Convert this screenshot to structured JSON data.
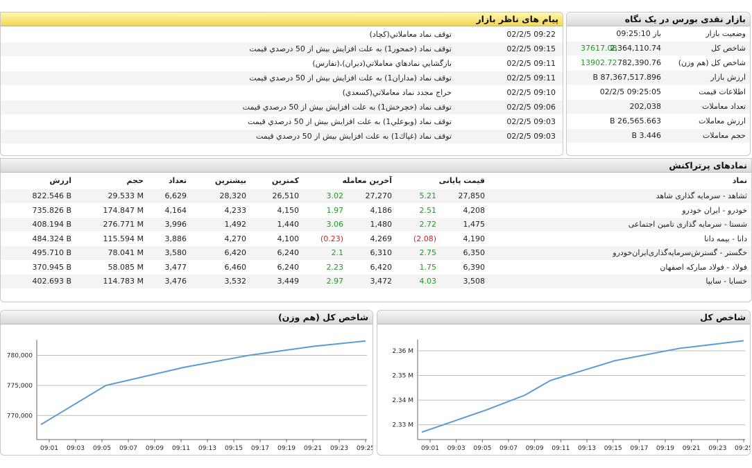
{
  "glance": {
    "title": "بازار نقدی بورس در یک نگاه",
    "rows": [
      {
        "label": "وضعیت بازار",
        "value": "باز 09:25:10",
        "change": ""
      },
      {
        "label": "شاخص کل",
        "value": "2,364,110.74",
        "change": "37617.08"
      },
      {
        "label": "شاخص کل (هم وزن)",
        "value": "782,390.76",
        "change": "13902.72"
      },
      {
        "label": "ارزش بازار",
        "value": "87,367,517.896 B",
        "change": ""
      },
      {
        "label": "اطلاعات قیمت",
        "value": "09:25:05 02/2/5",
        "change": ""
      },
      {
        "label": "تعداد معاملات",
        "value": "202,038",
        "change": ""
      },
      {
        "label": "ارزش معاملات",
        "value": "26,565.663 B",
        "change": ""
      },
      {
        "label": "حجم معاملات",
        "value": "3.446 B",
        "change": ""
      }
    ]
  },
  "messages": {
    "title": "پیام های ناظر بازار",
    "rows": [
      {
        "time": "02/2/5 09:22",
        "text": "توقف نماد معاملاتي(كچاد)"
      },
      {
        "time": "02/2/5 09:15",
        "text": "توقف نماد (خمحور1) به علت افزايش بيش از 50 درصدي قيمت"
      },
      {
        "time": "02/2/5 09:11",
        "text": "بازگشايي نمادهاي معاملاتي(ديران)،(تفارس)"
      },
      {
        "time": "02/2/5 09:11",
        "text": "توقف نماد (مداران1) به علت افزايش بيش از 50 درصدي قيمت"
      },
      {
        "time": "02/2/5 09:10",
        "text": "حراج مجدد نماد معاملاتي(كسعدي)"
      },
      {
        "time": "02/2/5 09:06",
        "text": "توقف نماد (خچرخش1) به علت افزايش بيش از 50 درصدي قيمت"
      },
      {
        "time": "02/2/5 09:03",
        "text": "توقف نماد (وبوعلي1) به علت افزايش بيش از 50 درصدي قيمت"
      },
      {
        "time": "02/2/5 09:03",
        "text": "توقف نماد (غپاك1) به علت افزايش بيش از 50 درصدي قيمت"
      }
    ]
  },
  "popular": {
    "title": "نمادهای پرتراکنش",
    "headers": {
      "symbol": "نماد",
      "close": "قیمت پایانی",
      "last": "آخرین معامله",
      "min": "کمترین",
      "max": "بیشترین",
      "count": "تعداد",
      "volume": "حجم",
      "value": "ارزش"
    },
    "rows": [
      {
        "symbol": "ثشاهد - سرمایه گذاری شاهد",
        "close": "27,850",
        "close_chg": "5.21",
        "last": "27,270",
        "last_chg": "3.02",
        "min": "26,510",
        "max": "28,320",
        "count": "6,629",
        "volume": "29.533 M",
        "value": "822.546 B"
      },
      {
        "symbol": "خودرو - ایران خودرو",
        "close": "4,208",
        "close_chg": "2.51",
        "last": "4,186",
        "last_chg": "1.97",
        "min": "4,150",
        "max": "4,233",
        "count": "4,164",
        "volume": "174.847 M",
        "value": "735.826 B"
      },
      {
        "symbol": "شستا - سرمایه گذاری تامین اجتماعی",
        "close": "1,475",
        "close_chg": "2.72",
        "last": "1,480",
        "last_chg": "3.06",
        "min": "1,440",
        "max": "1,492",
        "count": "3,996",
        "volume": "276.771 M",
        "value": "408.194 B"
      },
      {
        "symbol": "دانا - بیمه دانا",
        "close": "4,190",
        "close_chg": "(2.08)",
        "last": "4,269",
        "last_chg": "(0.23)",
        "min": "4,100",
        "max": "4,270",
        "count": "3,886",
        "volume": "115.594 M",
        "value": "484.324 B"
      },
      {
        "symbol": "خگستر - گسترش‌سرمایه‌گذاری‌ایران‌خودرو",
        "close": "6,350",
        "close_chg": "2.75",
        "last": "6,310",
        "last_chg": "2.1",
        "min": "6,240",
        "max": "6,420",
        "count": "3,580",
        "volume": "78.041 M",
        "value": "495.710 B"
      },
      {
        "symbol": "فولاد - فولاد مبارکه اصفهان",
        "close": "6,390",
        "close_chg": "1.75",
        "last": "6,420",
        "last_chg": "2.23",
        "min": "6,240",
        "max": "6,460",
        "count": "3,477",
        "volume": "58.085 M",
        "value": "370.945 B"
      },
      {
        "symbol": "خسایا - سایپا",
        "close": "3,508",
        "close_chg": "4.03",
        "last": "3,472",
        "last_chg": "2.97",
        "min": "3,449",
        "max": "3,532",
        "count": "3,476",
        "volume": "114.783 M",
        "value": "402.693 B"
      }
    ]
  },
  "colors": {
    "positive": "#1f9a1f",
    "negative": "#d42222",
    "line": "#5b9bd5",
    "header_yellow": "#f3d75a"
  },
  "chart_data": [
    {
      "type": "line",
      "title": "شاخص کل (هم وزن)",
      "x": [
        "09:00",
        "09:05",
        "09:11",
        "09:16",
        "09:21",
        "09:25"
      ],
      "xticks": [
        "09:01",
        "09:03",
        "09:05",
        "09:07",
        "09:09",
        "09:11",
        "09:13",
        "09:15",
        "09:17",
        "09:19",
        "09:21",
        "09:23",
        "09:25"
      ],
      "series": [
        {
          "values": [
            768500,
            775000,
            778000,
            780000,
            781500,
            782400
          ]
        }
      ],
      "yticks": [
        "770,000",
        "775,000",
        "780,000"
      ],
      "ylim": [
        766000,
        782600
      ],
      "grid": true
    },
    {
      "type": "line",
      "title": "شاخص کل",
      "x": [
        "09:00",
        "09:05",
        "09:08",
        "09:10",
        "09:15",
        "09:20",
        "09:25"
      ],
      "xticks": [
        "09:01",
        "09:03",
        "09:05",
        "09:07",
        "09:09",
        "09:11",
        "09:13",
        "09:15",
        "09:17",
        "09:19",
        "09:21",
        "09:23",
        "09:25"
      ],
      "series": [
        {
          "values": [
            2327000,
            2336000,
            2342000,
            2348000,
            2356000,
            2361000,
            2364100
          ]
        }
      ],
      "yticks": [
        "2.33 M",
        "2.34 M",
        "2.35 M",
        "2.36 M"
      ],
      "ylim": [
        2324000,
        2364500
      ],
      "grid": true
    }
  ]
}
